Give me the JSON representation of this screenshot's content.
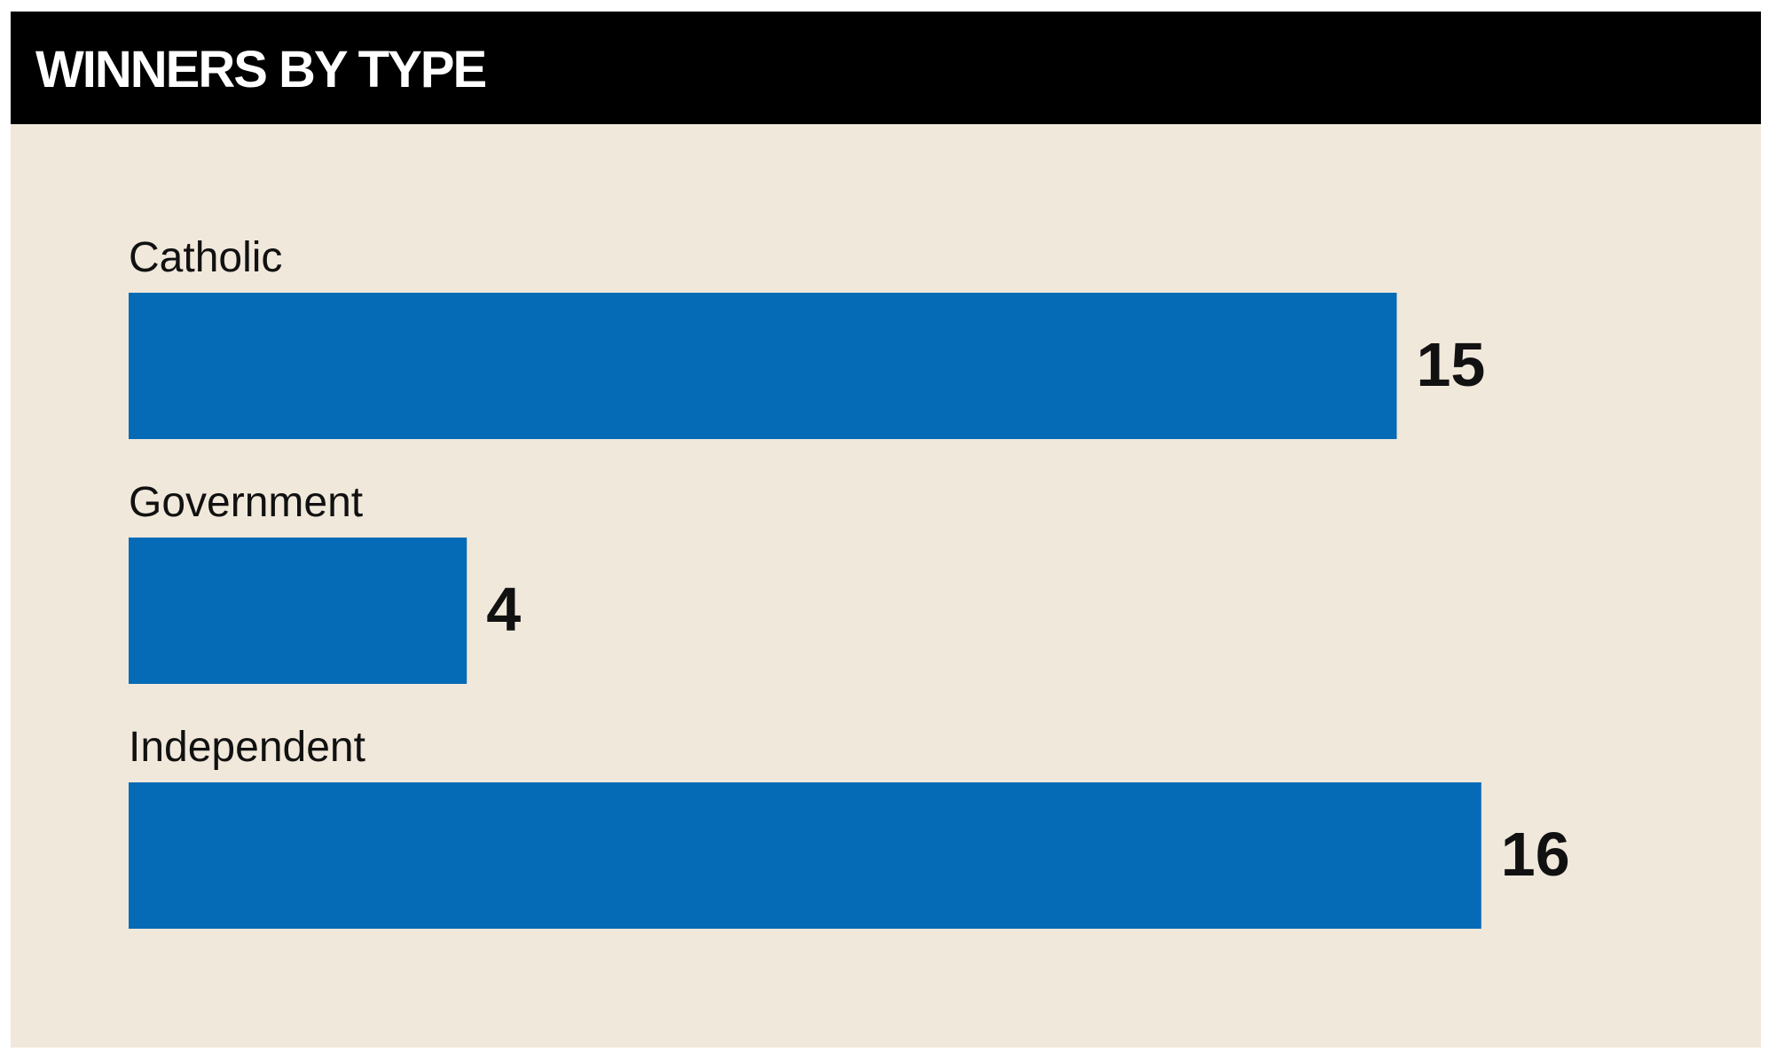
{
  "chart_data": {
    "type": "bar",
    "orientation": "horizontal",
    "title": "WINNERS BY TYPE",
    "categories": [
      "Catholic",
      "Government",
      "Independent"
    ],
    "values": [
      15,
      4,
      16
    ],
    "color": "#066bb7"
  }
}
